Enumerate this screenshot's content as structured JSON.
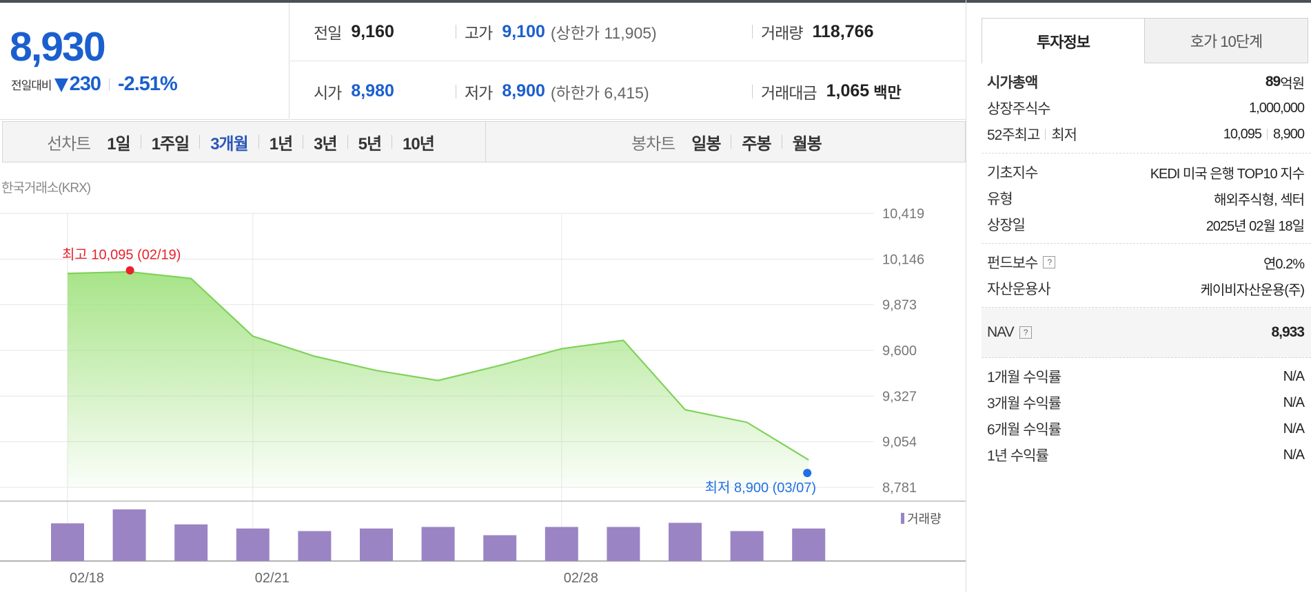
{
  "price": {
    "current": "8,930",
    "change_label": "전일대비",
    "change": "230",
    "change_pct": "-2.51%"
  },
  "summary": {
    "prev_label": "전일",
    "prev": "9,160",
    "high_label": "고가",
    "high": "9,100",
    "upper_limit": "(상한가 11,905)",
    "volume_label": "거래량",
    "volume": "118,766",
    "open_label": "시가",
    "open": "8,980",
    "low_label": "저가",
    "low": "8,900",
    "lower_limit": "(하한가 6,415)",
    "amount_label": "거래대금",
    "amount": "1,065",
    "amount_unit": "백만"
  },
  "line_tabs": {
    "label": "선차트",
    "items": [
      "1일",
      "1주일",
      "3개월",
      "1년",
      "3년",
      "5년",
      "10년"
    ],
    "active": "3개월"
  },
  "candle_tabs": {
    "label": "봉차트",
    "items": [
      "일봉",
      "주봉",
      "월봉"
    ]
  },
  "exchange": "한국거래소(KRX)",
  "chart_data": {
    "type": "area",
    "x": [
      "02/18",
      "02/19",
      "02/20",
      "02/21",
      "02/24",
      "02/25",
      "02/26",
      "02/27",
      "02/28",
      "03/04",
      "03/05",
      "03/06",
      "03/07"
    ],
    "series": [
      {
        "values": [
          10060,
          10070,
          10030,
          9685,
          9565,
          9480,
          9420,
          9510,
          9610,
          9660,
          9245,
          9170,
          8945
        ]
      }
    ],
    "volume": {
      "name": "거래량",
      "values": [
        0.73,
        1.0,
        0.71,
        0.63,
        0.58,
        0.63,
        0.66,
        0.5,
        0.66,
        0.66,
        0.74,
        0.58,
        0.63
      ]
    },
    "y_ticks": [
      "10,419",
      "10,146",
      "9,873",
      "9,600",
      "9,327",
      "9,054",
      "8,781"
    ],
    "ylim": [
      8781,
      10419
    ],
    "x_tick_labels": [
      {
        "index": 0,
        "label": "02/18"
      },
      {
        "index": 3,
        "label": "02/21"
      },
      {
        "index": 8,
        "label": "02/28"
      }
    ],
    "high": {
      "label": "최고 10,095 (02/19)",
      "value": 10095,
      "index": 1
    },
    "low": {
      "label": "최저 8,900 (03/07)",
      "value": 8900,
      "index": 12
    },
    "colors": {
      "line": "#7fd25a",
      "fill_top": "#a7e488",
      "high": "#e8212b",
      "low": "#1f6fe5",
      "volume": "#9b84c4"
    },
    "grid": true
  },
  "right": {
    "tabs": [
      "투자정보",
      "호가 10단계"
    ],
    "market_cap_label": "시가총액",
    "market_cap_num": "89",
    "market_cap_unit": "억원",
    "shares_label": "상장주식수",
    "shares": "1,000,000",
    "w52_label": "52주최고",
    "w52_low_label": "최저",
    "w52_high": "10,095",
    "w52_low": "8,900",
    "index_label": "기초지수",
    "index": "KEDI 미국 은행 TOP10 지수",
    "type_label": "유형",
    "type": "해외주식형, 섹터",
    "listing_label": "상장일",
    "listing": "2025년 02월 18일",
    "fee_label": "펀드보수",
    "fee": "연0.2%",
    "manager_label": "자산운용사",
    "manager": "케이비자산운용(주)",
    "nav_label": "NAV",
    "nav": "8,933",
    "returns": [
      {
        "label": "1개월 수익률",
        "value": "N/A"
      },
      {
        "label": "3개월 수익률",
        "value": "N/A"
      },
      {
        "label": "6개월 수익률",
        "value": "N/A"
      },
      {
        "label": "1년 수익률",
        "value": "N/A"
      }
    ]
  }
}
